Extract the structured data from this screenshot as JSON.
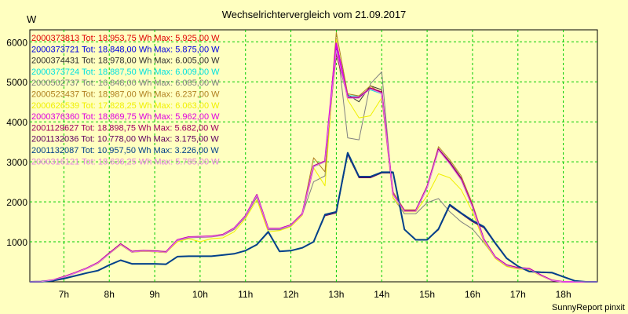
{
  "chart_data": {
    "type": "line",
    "title": "Wechselrichtervergleich vom 21.09.2017",
    "ylabel": "W",
    "footer": "SunnyReport pinxit",
    "ylim": [
      0,
      6300
    ],
    "xlim": [
      6.25,
      18.75
    ],
    "yticks": [
      1000,
      2000,
      3000,
      4000,
      5000,
      6000
    ],
    "xticks": [
      7,
      8,
      9,
      10,
      11,
      12,
      13,
      14,
      15,
      16,
      17,
      18
    ],
    "xticklabels": [
      "7h",
      "8h",
      "9h",
      "10h",
      "11h",
      "12h",
      "13h",
      "14h",
      "15h",
      "16h",
      "17h",
      "18h"
    ],
    "grid": true,
    "legend_position": "top-left",
    "x": [
      6.25,
      6.5,
      6.75,
      7.0,
      7.25,
      7.5,
      7.75,
      8.0,
      8.25,
      8.5,
      8.75,
      9.0,
      9.25,
      9.5,
      9.75,
      10.0,
      10.25,
      10.5,
      10.75,
      11.0,
      11.25,
      11.5,
      11.75,
      12.0,
      12.25,
      12.5,
      12.75,
      13.0,
      13.25,
      13.5,
      13.75,
      14.0,
      14.25,
      14.5,
      14.75,
      15.0,
      15.25,
      15.5,
      15.75,
      16.0,
      16.25,
      16.5,
      16.75,
      17.0,
      17.25,
      17.5,
      17.75,
      18.0,
      18.25,
      18.5,
      18.75
    ],
    "series": [
      {
        "id": "2000373813",
        "tot": "18.953,75",
        "max": "5.925,00",
        "color": "#e00000",
        "width": 1,
        "values": [
          0,
          5,
          45,
          130,
          230,
          340,
          480,
          720,
          950,
          760,
          780,
          770,
          750,
          1050,
          1120,
          1130,
          1140,
          1180,
          1340,
          1650,
          2180,
          1330,
          1330,
          1420,
          1700,
          2900,
          3020,
          5925,
          4620,
          4600,
          4850,
          4750,
          2200,
          1780,
          1780,
          2380,
          3320,
          2980,
          2580,
          1890,
          1060,
          620,
          420,
          350,
          330,
          170,
          40,
          0,
          0,
          0,
          0
        ]
      },
      {
        "id": "2000373721",
        "tot": "18.848,00",
        "max": "5.875,00",
        "color": "#0000e0",
        "width": 1,
        "values": [
          0,
          5,
          40,
          120,
          220,
          330,
          470,
          700,
          930,
          740,
          770,
          760,
          740,
          1040,
          1110,
          1120,
          1130,
          1170,
          1330,
          1640,
          2160,
          1320,
          1320,
          1410,
          1690,
          2880,
          3000,
          5875,
          4600,
          4620,
          4830,
          4720,
          2180,
          1760,
          1760,
          2350,
          3300,
          2950,
          2550,
          1870,
          1050,
          610,
          410,
          340,
          320,
          160,
          35,
          0,
          0,
          0,
          0
        ]
      },
      {
        "id": "2000374431",
        "tot": "18.978,00",
        "max": "6.005,00",
        "color": "#303030",
        "width": 1,
        "values": [
          0,
          5,
          45,
          130,
          230,
          340,
          480,
          720,
          950,
          760,
          780,
          770,
          750,
          1050,
          1120,
          1130,
          1140,
          1180,
          1340,
          1650,
          2180,
          1330,
          1330,
          1420,
          1700,
          2900,
          3020,
          6005,
          4680,
          4500,
          4900,
          4800,
          2200,
          1790,
          1790,
          2390,
          3330,
          3000,
          2600,
          1900,
          1060,
          620,
          420,
          350,
          330,
          170,
          40,
          0,
          0,
          0,
          0
        ]
      },
      {
        "id": "2000373724",
        "tot": "18.887,50",
        "max": "6.009,00",
        "color": "#00e0e0",
        "width": 1,
        "values": [
          0,
          5,
          40,
          125,
          225,
          335,
          475,
          710,
          940,
          750,
          775,
          765,
          745,
          1045,
          1115,
          1125,
          1135,
          1175,
          1335,
          1645,
          2170,
          1325,
          1325,
          1415,
          1695,
          2890,
          3010,
          6009,
          4650,
          4650,
          4800,
          4700,
          2190,
          1770,
          1770,
          2370,
          3310,
          2960,
          2560,
          1880,
          1055,
          615,
          415,
          345,
          325,
          165,
          38,
          0,
          0,
          0,
          0
        ]
      },
      {
        "id": "2000502737",
        "tot": "16.848,00",
        "max": "6.085,00",
        "color": "#808080",
        "width": 1,
        "values": [
          0,
          5,
          40,
          120,
          220,
          330,
          460,
          700,
          920,
          740,
          760,
          750,
          730,
          1030,
          1100,
          1110,
          1120,
          1160,
          1310,
          1620,
          2120,
          1300,
          1300,
          1400,
          1680,
          2500,
          2650,
          6085,
          3600,
          3550,
          4950,
          5250,
          2100,
          1700,
          1700,
          1980,
          2080,
          1750,
          1500,
          1320,
          980,
          600,
          400,
          330,
          310,
          160,
          35,
          0,
          0,
          0,
          0
        ]
      },
      {
        "id": "2000523437",
        "tot": "18.987,00",
        "max": "6.237,00",
        "color": "#b08020",
        "width": 1,
        "values": [
          0,
          5,
          45,
          130,
          235,
          345,
          485,
          725,
          955,
          765,
          785,
          775,
          755,
          1055,
          1125,
          1135,
          1145,
          1185,
          1345,
          1655,
          2185,
          1335,
          1335,
          1425,
          1705,
          3100,
          2750,
          6237,
          4700,
          4650,
          4900,
          4700,
          2250,
          1800,
          1800,
          2400,
          3380,
          3050,
          2650,
          1950,
          1080,
          630,
          430,
          360,
          340,
          175,
          42,
          0,
          0,
          0,
          0
        ]
      },
      {
        "id": "2000626539",
        "tot": "17.828,25",
        "max": "6.063,00",
        "color": "#f0f000",
        "width": 1,
        "values": [
          0,
          5,
          40,
          120,
          220,
          330,
          460,
          700,
          920,
          740,
          760,
          750,
          730,
          1000,
          1080,
          1000,
          1080,
          1100,
          1250,
          1580,
          2050,
          1250,
          1280,
          1380,
          1660,
          2850,
          2400,
          6063,
          4550,
          4100,
          4150,
          4600,
          2100,
          1750,
          1750,
          2150,
          2700,
          2600,
          2300,
          1750,
          1000,
          580,
          380,
          320,
          300,
          150,
          30,
          0,
          0,
          0,
          0
        ]
      },
      {
        "id": "2000376360",
        "tot": "18.869,75",
        "max": "5.962,00",
        "color": "#e000e0",
        "width": 2,
        "values": [
          0,
          5,
          42,
          125,
          228,
          338,
          478,
          715,
          945,
          755,
          778,
          768,
          748,
          1048,
          1118,
          1128,
          1138,
          1178,
          1338,
          1648,
          2175,
          1328,
          1328,
          1418,
          1698,
          2895,
          3015,
          5962,
          4610,
          4610,
          4840,
          4730,
          2195,
          1775,
          1775,
          2375,
          3315,
          2970,
          2570,
          1885,
          1058,
          618,
          418,
          348,
          328,
          168,
          38,
          0,
          0,
          0,
          0
        ]
      },
      {
        "id": "2001129627",
        "tot": "18.898,75",
        "max": "5.682,00",
        "color": "#a00060",
        "width": 1,
        "values": [
          0,
          5,
          43,
          127,
          229,
          339,
          479,
          718,
          948,
          758,
          779,
          769,
          749,
          1049,
          1119,
          1129,
          1139,
          1179,
          1339,
          1649,
          2178,
          1329,
          1329,
          1419,
          1699,
          2898,
          3018,
          5682,
          4615,
          4605,
          4845,
          4740,
          2198,
          1778,
          1778,
          2378,
          3318,
          2975,
          2575,
          1888,
          1059,
          619,
          419,
          349,
          329,
          169,
          39,
          0,
          0,
          0,
          0
        ]
      },
      {
        "id": "2001132036",
        "tot": "10.778,00",
        "max": "3.175,00",
        "color": "#600060",
        "width": 1,
        "values": [
          0,
          3,
          25,
          80,
          150,
          220,
          280,
          420,
          540,
          450,
          450,
          450,
          440,
          630,
          640,
          640,
          640,
          670,
          700,
          780,
          930,
          1230,
          760,
          780,
          850,
          1000,
          1650,
          1720,
          3175,
          2600,
          2600,
          2720,
          2720,
          1300,
          1050,
          1050,
          1300,
          1900,
          1700,
          1500,
          1350,
          950,
          580,
          380,
          250,
          230,
          220,
          120,
          25,
          0,
          0
        ]
      },
      {
        "id": "2001132087",
        "tot": "10.957,50",
        "max": "3.226,00",
        "color": "#00408a",
        "width": 2,
        "values": [
          0,
          3,
          25,
          80,
          150,
          220,
          280,
          420,
          540,
          450,
          450,
          450,
          440,
          630,
          640,
          640,
          640,
          670,
          700,
          780,
          930,
          1250,
          760,
          780,
          850,
          1000,
          1680,
          1750,
          3226,
          2630,
          2630,
          2740,
          2740,
          1310,
          1050,
          1050,
          1320,
          1930,
          1720,
          1530,
          1380,
          970,
          590,
          390,
          260,
          240,
          230,
          125,
          25,
          0,
          0
        ]
      },
      {
        "id": "2000316121",
        "tot": "18.636,25",
        "max": "5.785,00",
        "color": "#e080e0",
        "width": 1,
        "values": [
          0,
          5,
          41,
          122,
          224,
          334,
          472,
          705,
          935,
          748,
          772,
          762,
          742,
          1042,
          1112,
          1122,
          1132,
          1172,
          1332,
          1642,
          2165,
          1322,
          1322,
          1412,
          1692,
          2885,
          3005,
          5785,
          4590,
          4590,
          4820,
          4710,
          2185,
          1765,
          1765,
          2360,
          3290,
          2940,
          2540,
          1860,
          1048,
          608,
          408,
          338,
          318,
          158,
          34,
          0,
          0,
          0,
          0
        ]
      }
    ]
  },
  "legend_labels": {
    "tot": "Tot:",
    "wh": "Wh",
    "max": "Max:",
    "w": "W"
  }
}
